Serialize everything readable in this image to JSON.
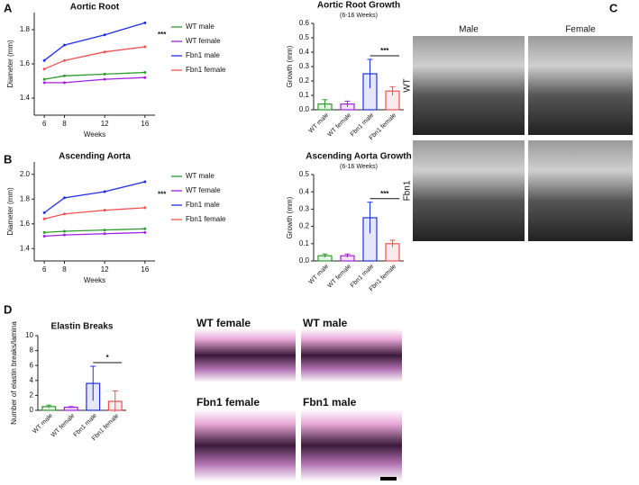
{
  "panels": {
    "letters": [
      "A",
      "B",
      "C",
      "D"
    ],
    "c_columns": [
      "Male",
      "Female"
    ],
    "c_rows": [
      "WT",
      "Fbn1"
    ],
    "d_images": [
      "WT female",
      "WT male",
      "Fbn1 female",
      "Fbn1 male"
    ]
  },
  "chart_data": [
    {
      "type": "line",
      "title": "Aortic Root",
      "xlabel": "Weeks",
      "ylabel": "Diameter (mm)",
      "x": [
        6,
        8,
        12,
        16
      ],
      "xlim": [
        5,
        17
      ],
      "xticks": [
        6,
        8,
        12,
        16
      ],
      "ylim": [
        1.3,
        1.9
      ],
      "yticks": [
        1.4,
        1.6,
        1.8
      ],
      "legend": "right",
      "annotation": "***",
      "series": [
        {
          "name": "WT male",
          "color": "#2e9a2e",
          "values": [
            1.51,
            1.53,
            1.54,
            1.55
          ]
        },
        {
          "name": "WT female",
          "color": "#a21fe0",
          "values": [
            1.49,
            1.49,
            1.51,
            1.52
          ]
        },
        {
          "name": "Fbn1 male",
          "color": "#1f2fe0",
          "values": [
            1.62,
            1.71,
            1.77,
            1.84
          ]
        },
        {
          "name": "Fbn1 female",
          "color": "#f0504f",
          "values": [
            1.57,
            1.62,
            1.67,
            1.7
          ]
        }
      ]
    },
    {
      "type": "bar",
      "title": "Aortic Root Growth",
      "subtitle": "(6-16 Weeks)",
      "ylabel": "Growth (mm)",
      "categories": [
        "WT male",
        "WT female",
        "Fbn1 male",
        "Fbn1 female"
      ],
      "values": [
        0.04,
        0.04,
        0.25,
        0.13
      ],
      "errors": [
        0.03,
        0.02,
        0.1,
        0.03
      ],
      "colors": [
        "#2e9a2e",
        "#a21fe0",
        "#1f2fe0",
        "#f0504f"
      ],
      "ylim": [
        0,
        0.6
      ],
      "yticks": [
        {
          "value": 0,
          "label": "0.0"
        },
        0.1,
        0.2,
        0.3,
        0.4,
        0.5,
        0.6
      ],
      "annotation": "***"
    },
    {
      "type": "line",
      "title": "Ascending Aorta",
      "xlabel": "Weeks",
      "ylabel": "Diameter (mm)",
      "x": [
        6,
        8,
        12,
        16
      ],
      "xlim": [
        5,
        17
      ],
      "xticks": [
        6,
        8,
        12,
        16
      ],
      "ylim": [
        1.3,
        2.1
      ],
      "yticks": [
        1.4,
        1.6,
        1.8,
        {
          "value": 2,
          "label": "2.0"
        }
      ],
      "legend": "right",
      "annotation": "***",
      "series": [
        {
          "name": "WT male",
          "color": "#2e9a2e",
          "values": [
            1.53,
            1.54,
            1.55,
            1.56
          ]
        },
        {
          "name": "WT female",
          "color": "#a21fe0",
          "values": [
            1.5,
            1.51,
            1.52,
            1.53
          ]
        },
        {
          "name": "Fbn1 male",
          "color": "#1f2fe0",
          "values": [
            1.69,
            1.81,
            1.86,
            1.94
          ]
        },
        {
          "name": "Fbn1 female",
          "color": "#f0504f",
          "values": [
            1.64,
            1.68,
            1.71,
            1.73
          ]
        }
      ]
    },
    {
      "type": "bar",
      "title": "Ascending Aorta Growth",
      "subtitle": "(6-16 Weeks)",
      "ylabel": "Growth (mm)",
      "categories": [
        "WT male",
        "WT female",
        "Fbn1 male",
        "Fbn1 female"
      ],
      "values": [
        0.03,
        0.03,
        0.25,
        0.1
      ],
      "errors": [
        0.01,
        0.01,
        0.09,
        0.02
      ],
      "colors": [
        "#2e9a2e",
        "#a21fe0",
        "#1f2fe0",
        "#f0504f"
      ],
      "ylim": [
        0,
        0.5
      ],
      "yticks": [
        {
          "value": 0,
          "label": "0.0"
        },
        0.1,
        0.2,
        0.3,
        0.4,
        0.5
      ],
      "annotation": "***"
    },
    {
      "type": "bar",
      "title": "Elastin Breaks",
      "ylabel": "Number of elastin breaks/lamina",
      "categories": [
        "WT male",
        "WT female",
        "Fbn1 male",
        "Fbn1 female"
      ],
      "values": [
        0.5,
        0.4,
        3.6,
        1.2
      ],
      "errors": [
        0.2,
        0.1,
        2.3,
        1.4
      ],
      "colors": [
        "#2e9a2e",
        "#a21fe0",
        "#1f2fe0",
        "#f0504f"
      ],
      "ylim": [
        0,
        10
      ],
      "yticks": [
        0,
        2,
        4,
        6,
        8,
        10
      ],
      "annotation": "*"
    }
  ]
}
